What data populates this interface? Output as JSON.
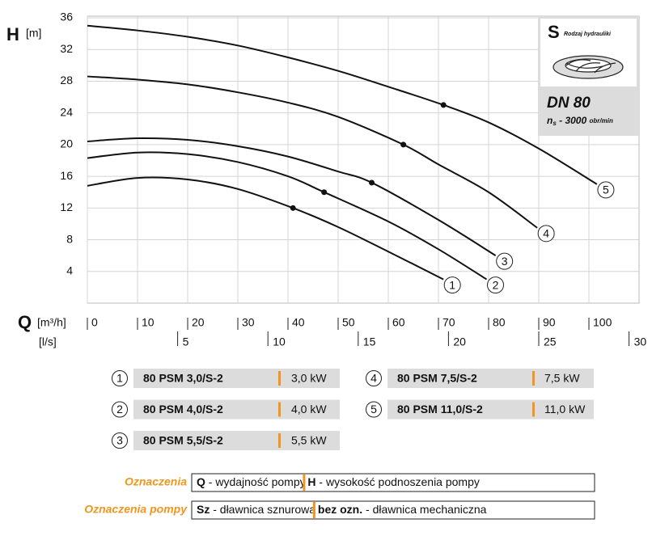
{
  "chart_data": {
    "type": "line",
    "y_title": "H",
    "y_unit": "[m]",
    "x_title": "Q",
    "x_unit": "[m³/h]",
    "x2_unit": "[l/s]",
    "xlim": [
      0,
      110
    ],
    "ylim": [
      0,
      36
    ],
    "xticks": [
      0,
      10,
      20,
      30,
      40,
      50,
      60,
      70,
      80,
      90,
      100
    ],
    "yticks": [
      4,
      8,
      12,
      16,
      20,
      24,
      28,
      32,
      36
    ],
    "x2ticks": [
      5,
      10,
      15,
      20,
      25,
      30
    ],
    "x2_factor": 3.6,
    "grid": true,
    "series": [
      {
        "label": "1",
        "name": "80 PSM 3,0/S-2",
        "power": "3,0 kW",
        "color": "#111111",
        "x": [
          0,
          10,
          20,
          30,
          41,
          50,
          60,
          71
        ],
        "values": [
          14.8,
          15.8,
          15.6,
          14.4,
          12.0,
          9.6,
          6.5,
          3.0
        ],
        "operating_point": [
          41,
          12.0
        ]
      },
      {
        "label": "2",
        "name": "80 PSM 4,0/S-2",
        "power": "4,0 kW",
        "color": "#111111",
        "x": [
          0,
          10,
          20,
          30,
          40,
          47.2,
          60,
          70,
          79.6
        ],
        "values": [
          18.3,
          19.0,
          18.8,
          17.8,
          16.0,
          14.0,
          10.3,
          6.8,
          3.0
        ],
        "operating_point": [
          47.2,
          14.0
        ]
      },
      {
        "label": "3",
        "name": "80 PSM 5,5/S-2",
        "power": "5,5 kW",
        "color": "#111111",
        "x": [
          0,
          10,
          20,
          30,
          40,
          50,
          56.7,
          70,
          81.4
        ],
        "values": [
          20.4,
          20.8,
          20.6,
          19.8,
          18.5,
          16.6,
          15.2,
          10.5,
          6.0
        ],
        "operating_point": [
          56.7,
          15.2
        ]
      },
      {
        "label": "4",
        "name": "80 PSM 7,5/S-2",
        "power": "7,5 kW",
        "color": "#111111",
        "x": [
          0,
          10,
          20,
          30,
          40,
          50,
          63,
          70,
          80,
          89.7
        ],
        "values": [
          28.6,
          28.2,
          27.6,
          26.6,
          25.3,
          23.5,
          20.0,
          17.5,
          14.0,
          9.5
        ],
        "operating_point": [
          63,
          20.0
        ]
      },
      {
        "label": "5",
        "name": "80 PSM 11,0/S-2",
        "power": "11,0 kW",
        "color": "#111111",
        "x": [
          0,
          10,
          20,
          30,
          40,
          50,
          60,
          71,
          80,
          90,
          101.6
        ],
        "values": [
          35.0,
          34.4,
          33.6,
          32.5,
          31.0,
          29.3,
          27.3,
          25.0,
          22.8,
          19.5,
          15.0
        ],
        "operating_point": [
          71,
          25.0
        ]
      }
    ]
  },
  "info": {
    "letter": "S",
    "letter_caption": "Rodzaj hydrauliki",
    "dn": "DN 80",
    "n": "n",
    "n_sub": "s",
    "speed": " - 3000 ",
    "speed_unit": "obr/min"
  },
  "notes": [
    {
      "title": "Oznaczenia",
      "k1": "Q",
      "t1": " - wydajność pompy",
      "k2": "H",
      "t2": " - wysokość podnoszenia pompy"
    },
    {
      "title": "Oznaczenia pompy",
      "k1": "Sz",
      "t1": " - dławnica sznurowa",
      "k2": "bez ozn.",
      "t2": " - dławnica mechaniczna"
    }
  ]
}
